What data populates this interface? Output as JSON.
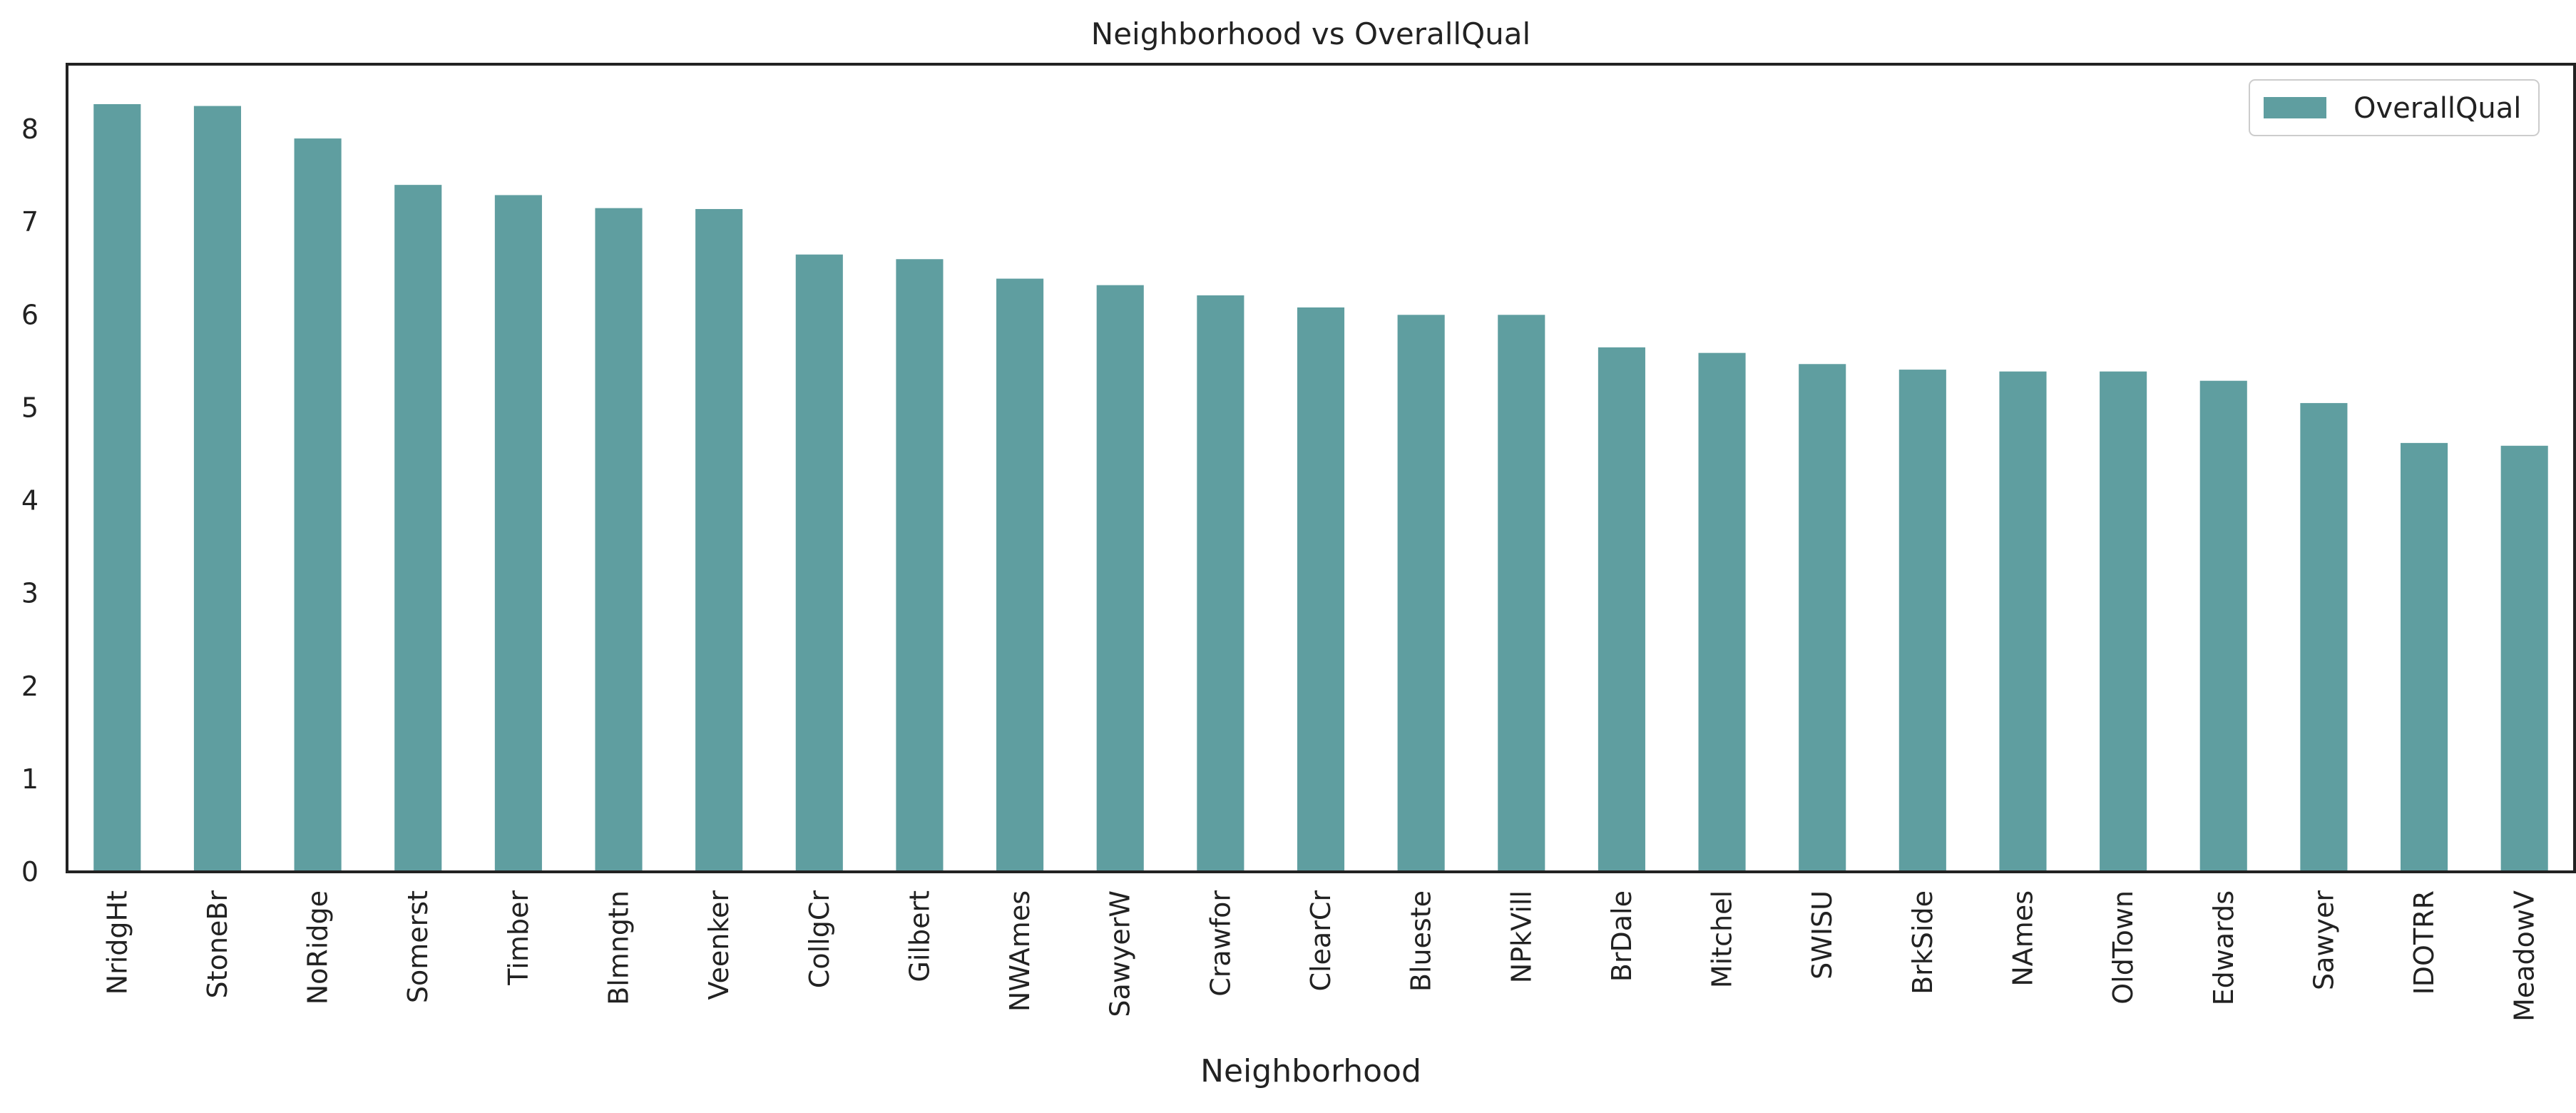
{
  "chart_data": {
    "type": "bar",
    "title": "Neighborhood vs OverallQual",
    "xlabel": "Neighborhood",
    "ylabel": "",
    "categories": [
      "NridgHt",
      "StoneBr",
      "NoRidge",
      "Somerst",
      "Timber",
      "Blmngtn",
      "Veenker",
      "CollgCr",
      "Gilbert",
      "NWAmes",
      "SawyerW",
      "Crawfor",
      "ClearCr",
      "Blueste",
      "NPkVill",
      "BrDale",
      "Mitchel",
      "SWISU",
      "BrkSide",
      "NAmes",
      "OldTown",
      "Edwards",
      "Sawyer",
      "IDOTRR",
      "MeadowV"
    ],
    "series": [
      {
        "name": "OverallQual",
        "values": [
          8.27,
          8.25,
          7.9,
          7.4,
          7.29,
          7.15,
          7.14,
          6.65,
          6.6,
          6.39,
          6.32,
          6.21,
          6.08,
          6.0,
          6.0,
          5.65,
          5.59,
          5.47,
          5.41,
          5.39,
          5.39,
          5.29,
          5.05,
          4.62,
          4.59
        ]
      }
    ],
    "ylim": [
      0,
      8.7
    ],
    "yticks": [
      0,
      1,
      2,
      3,
      4,
      5,
      6,
      7,
      8
    ],
    "grid": false,
    "legend": "top-right",
    "colors": {
      "bar": "#5f9ea0",
      "axis": "#222222"
    }
  }
}
